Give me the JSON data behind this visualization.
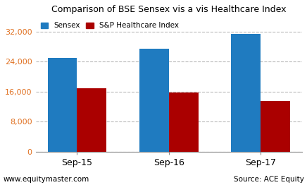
{
  "title": "Comparison of BSE Sensex vis a vis Healthcare Index",
  "categories": [
    "Sep-15",
    "Sep-16",
    "Sep-17"
  ],
  "sensex_values": [
    25000,
    27500,
    31500
  ],
  "healthcare_values": [
    17000,
    15800,
    13500
  ],
  "sensex_color": "#1f7bc0",
  "healthcare_color": "#aa0000",
  "ylim": [
    0,
    36000
  ],
  "yticks": [
    0,
    8000,
    16000,
    24000,
    32000
  ],
  "ytick_labels": [
    "0",
    "8,000",
    "16,000",
    "24,000",
    "32,000"
  ],
  "ytick_color": "#e07020",
  "legend_labels": [
    "Sensex",
    "S&P Healthcare Index"
  ],
  "footer_left": "www.equitymaster.com",
  "footer_right": "Source: ACE Equity",
  "background_color": "#ffffff",
  "grid_color": "#bbbbbb",
  "bar_width": 0.32,
  "title_fontsize": 9,
  "tick_fontsize": 8,
  "xtick_fontsize": 9,
  "footer_fontsize": 7.5
}
